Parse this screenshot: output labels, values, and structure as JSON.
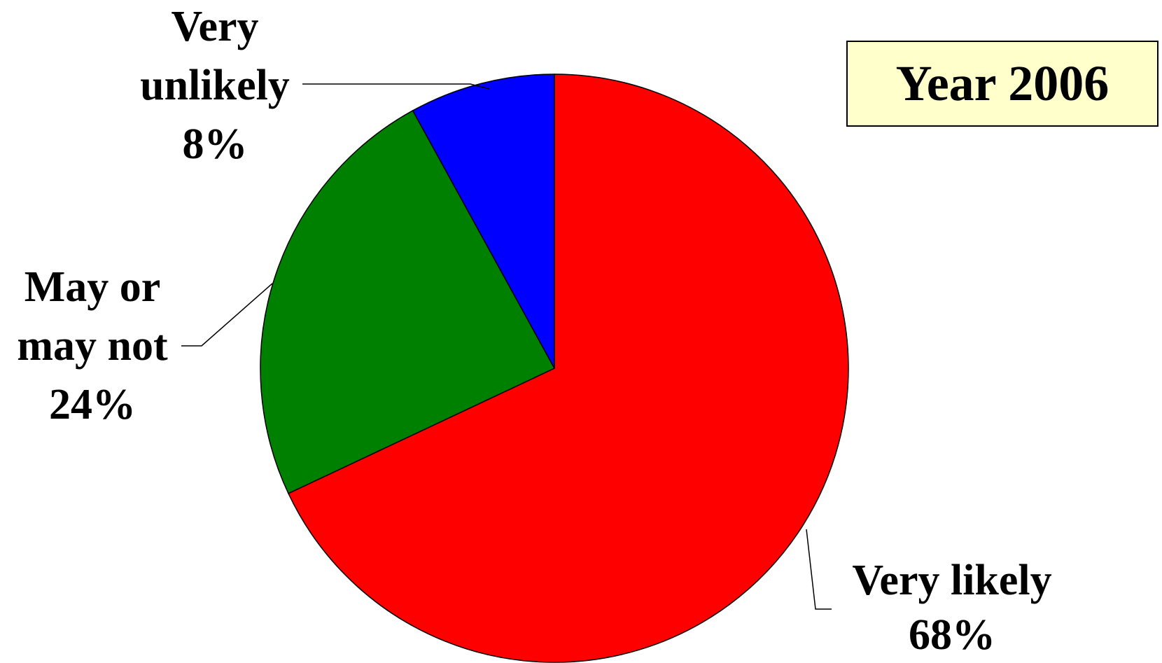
{
  "chart_data": {
    "type": "pie",
    "title": "Year 2006",
    "categories": [
      "Very likely",
      "May or may not",
      "Very unlikely"
    ],
    "values": [
      68,
      24,
      8
    ],
    "value_labels": [
      "68%",
      "24%",
      "8%"
    ],
    "colors": [
      "#ff0000",
      "#008000",
      "#0000ff"
    ]
  }
}
